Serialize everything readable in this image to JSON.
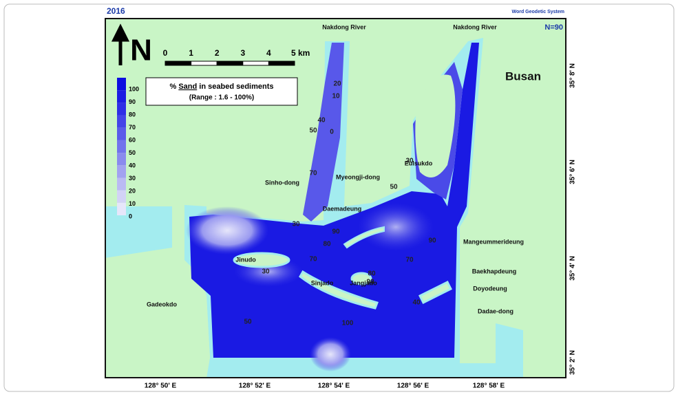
{
  "header": {
    "year": "2016",
    "datum": "Word Geodetic System"
  },
  "north_arrow": "N",
  "sample_count": "N=90",
  "scale_bar": {
    "ticks": [
      "0",
      "1",
      "2",
      "3",
      "4"
    ],
    "end_label": "5 km"
  },
  "legend": {
    "title_parts": [
      "%",
      "Sand",
      "in seabed sediments"
    ],
    "range": "(Range : 1.6 - 100%)",
    "levels": [
      100,
      90,
      80,
      70,
      60,
      50,
      40,
      30,
      20,
      10,
      0
    ],
    "colors": [
      "#0d0de0",
      "#1c1ce3",
      "#2e2ee6",
      "#4444e8",
      "#5a5aea",
      "#7272ec",
      "#8a8aee",
      "#a2a2f0",
      "#babaf3",
      "#d2d2f6",
      "#e6e6fa"
    ]
  },
  "places": [
    "Nakdong River",
    "Nakdong River",
    "Busan",
    "Eulsukdo",
    "Myeongji-dong",
    "Sinho-dong",
    "Daemadeung",
    "Mangeummerideung",
    "Jinudo",
    "Sinjado",
    "Jangjado",
    "Baekhapdeung",
    "Doyodeung",
    "Gadeokdo",
    "Dadae-dong"
  ],
  "contour_labels": [
    100,
    90,
    80,
    70,
    80,
    90,
    50,
    70,
    30,
    50,
    50,
    40,
    20,
    10,
    0,
    70,
    30,
    90,
    40,
    30
  ],
  "longitudes": [
    "128° 50' E",
    "128° 52' E",
    "128° 54' E",
    "128° 56' E",
    "128° 58' E"
  ],
  "latitudes": [
    "35° 8' N",
    "35° 6' N",
    "35° 4' N",
    "35° 2' N"
  ]
}
